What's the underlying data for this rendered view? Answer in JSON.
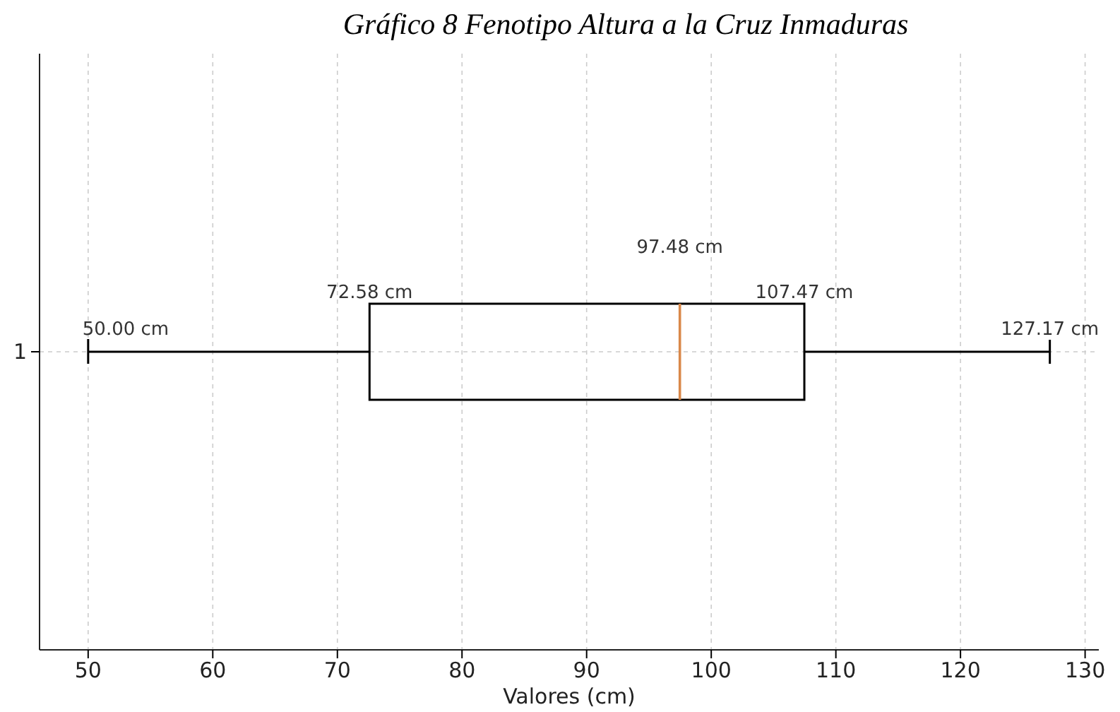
{
  "chart_data": {
    "type": "box",
    "title": "Gráfico 8 Fenotipo Altura a la Cruz Inmaduras",
    "xlabel": "Valores (cm)",
    "orientation": "horizontal",
    "categories": [
      "1"
    ],
    "boxes": [
      {
        "low": 50,
        "q1": 72.58,
        "median": 97.48,
        "q3": 107.47,
        "high": 127.17
      }
    ],
    "xlim": [
      46.1,
      131.1
    ],
    "xticks": [
      50,
      60,
      70,
      80,
      90,
      100,
      110,
      120,
      130
    ],
    "grid": true,
    "annotations": [
      {
        "text": "50.00 cm",
        "x": 50,
        "y": "1"
      },
      {
        "text": "72.58 cm",
        "x": 72.58,
        "y": "1"
      },
      "97.48 cm",
      {
        "text": "107.47 cm",
        "x": 107.47,
        "y": "1"
      },
      {
        "text": "127.17 cm",
        "x": 127.17,
        "y": "1"
      }
    ]
  }
}
